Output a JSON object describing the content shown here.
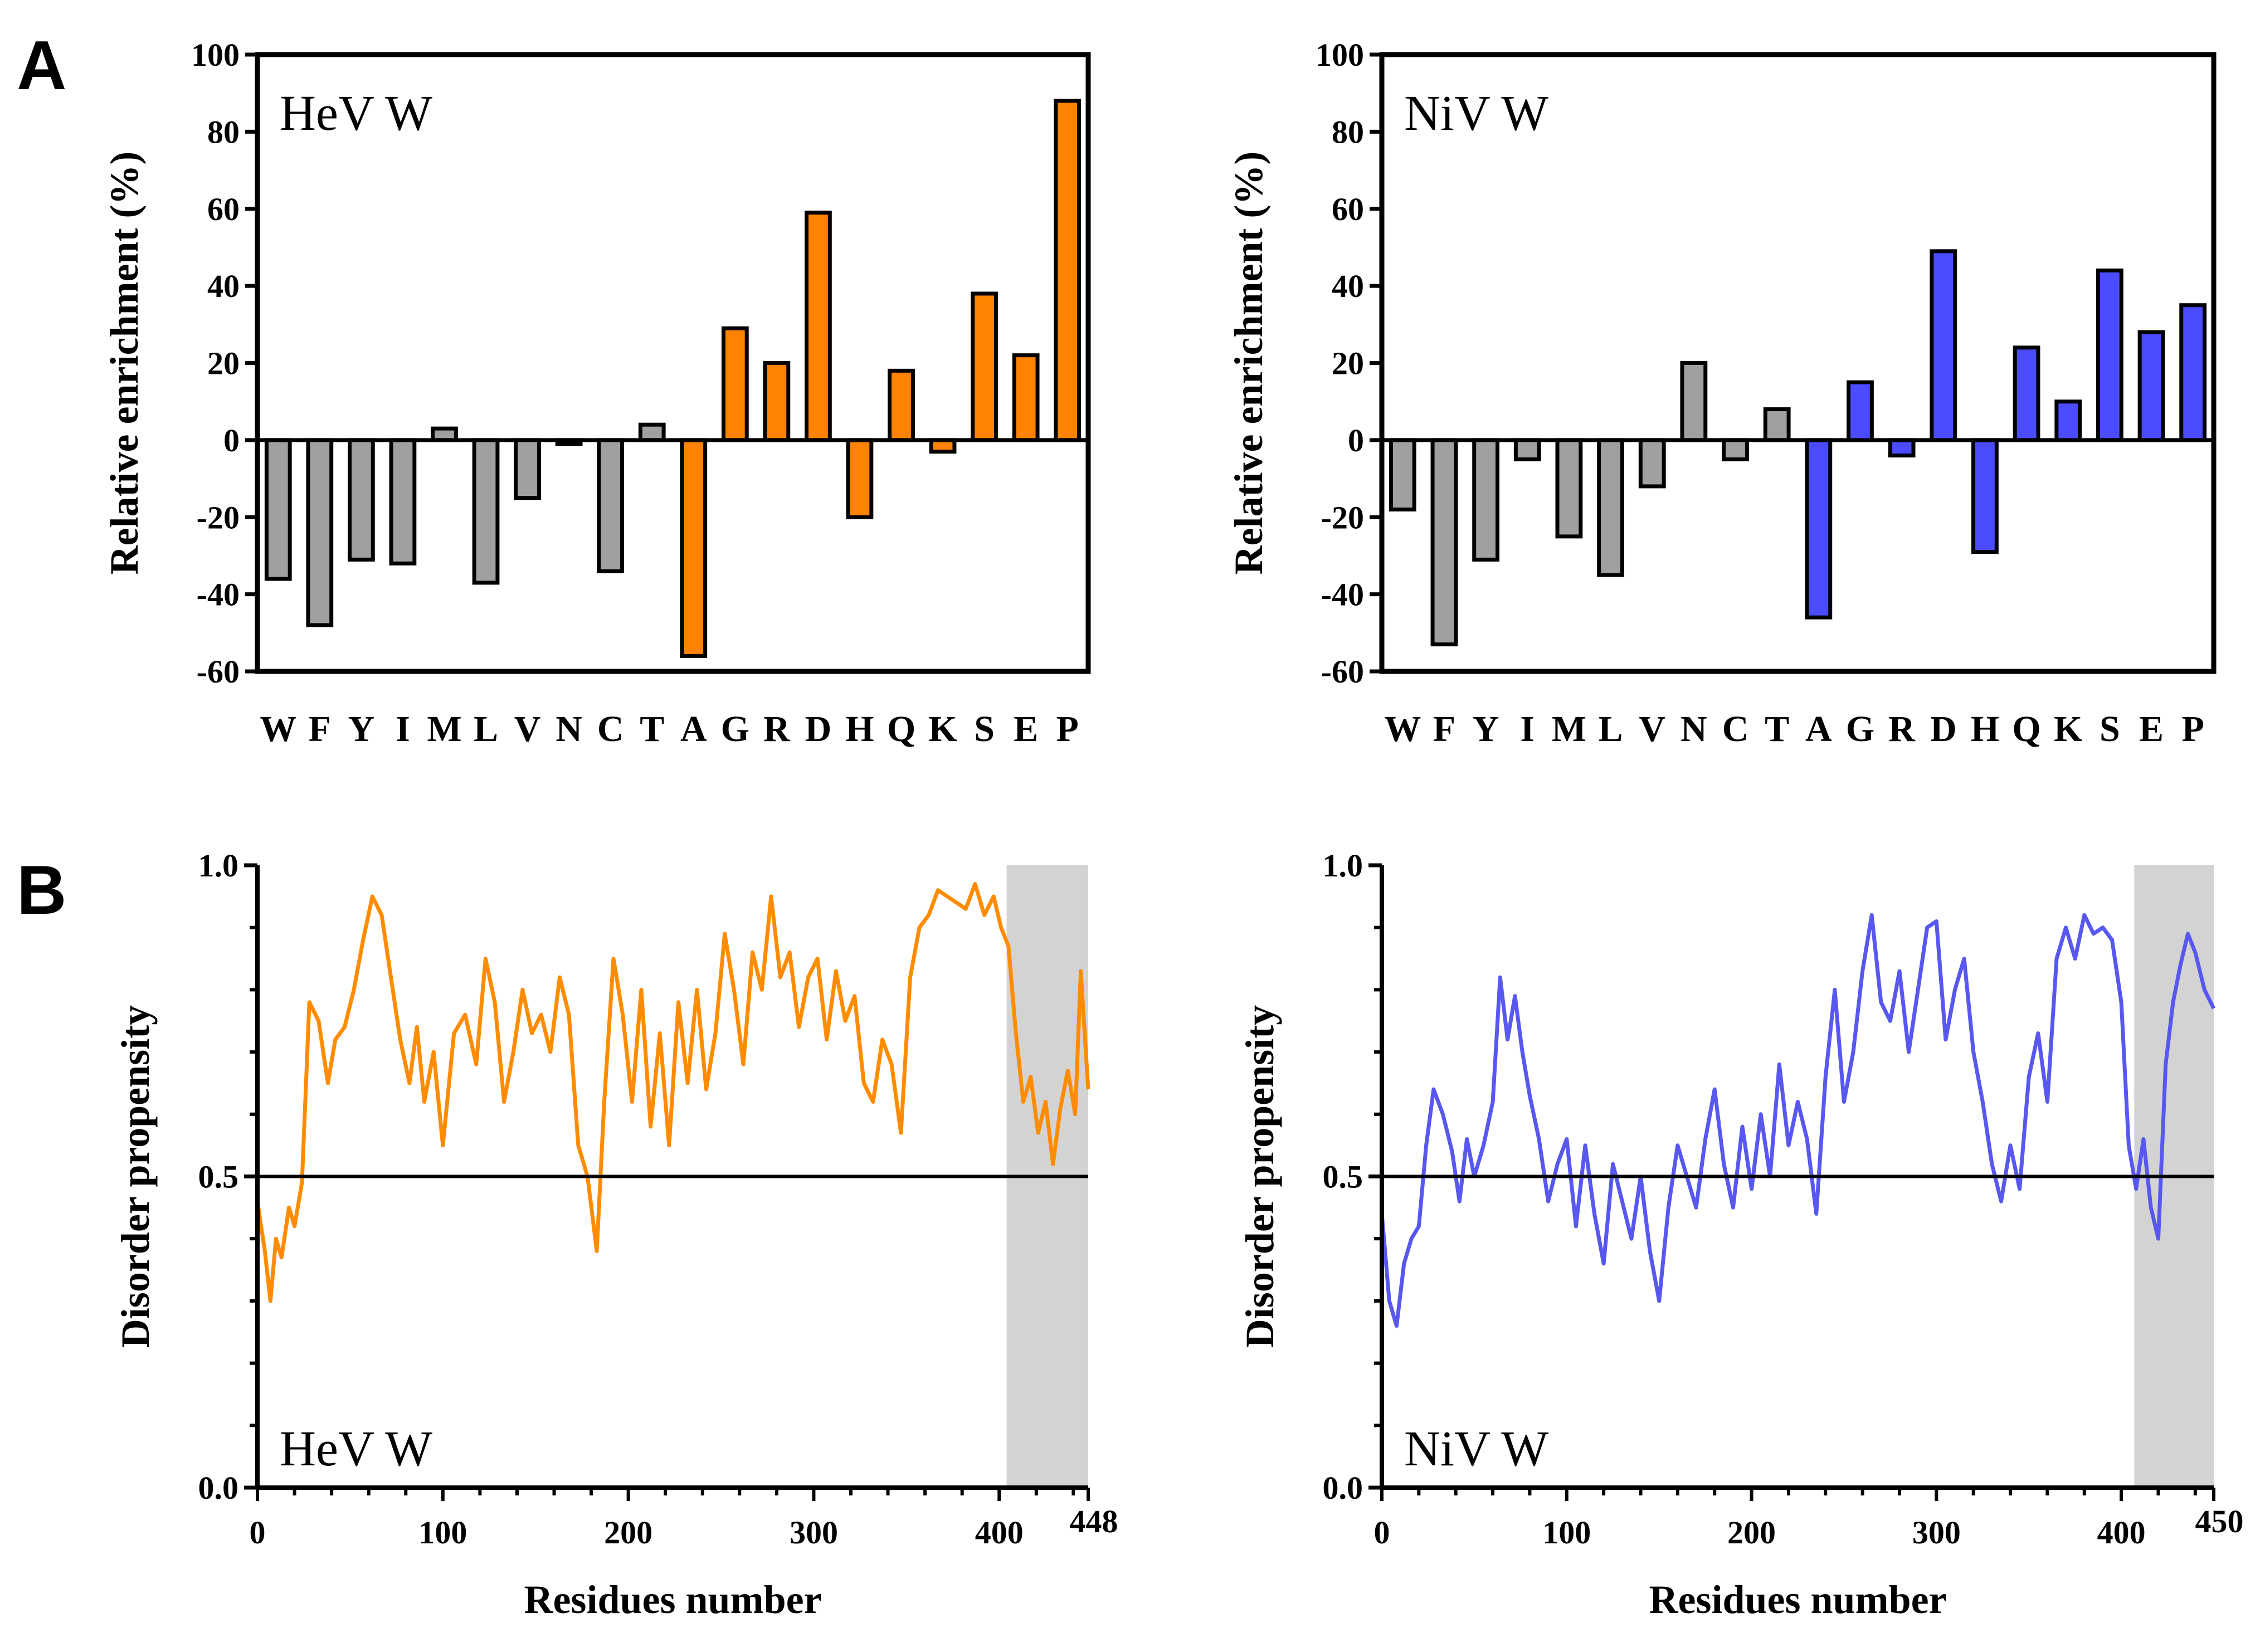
{
  "panels": {
    "a": "A",
    "b": "B"
  },
  "chart_data": [
    {
      "id": "hev_bar",
      "type": "bar",
      "label": "HeV W",
      "ylabel": "Relative enrichment (%)",
      "xlabel": "",
      "ylim": [
        -60,
        100
      ],
      "yticks": [
        -60,
        -40,
        -20,
        0,
        20,
        40,
        60,
        80,
        100
      ],
      "categories": [
        "W",
        "F",
        "Y",
        "I",
        "M",
        "L",
        "V",
        "N",
        "C",
        "T",
        "A",
        "G",
        "R",
        "D",
        "H",
        "Q",
        "K",
        "S",
        "E",
        "P"
      ],
      "values": [
        -36,
        -48,
        -31,
        -32,
        3,
        -37,
        -15,
        -1,
        -34,
        4,
        -56,
        29,
        20,
        59,
        -20,
        18,
        -3,
        38,
        22,
        88
      ],
      "disorder_promoting": [
        false,
        false,
        false,
        false,
        false,
        false,
        false,
        false,
        false,
        false,
        true,
        true,
        true,
        true,
        true,
        true,
        true,
        true,
        true,
        true
      ],
      "colors": {
        "order": "#a0a0a0",
        "disorder": "#ff8200"
      }
    },
    {
      "id": "niv_bar",
      "type": "bar",
      "label": "NiV W",
      "ylabel": "Relative enrichment (%)",
      "xlabel": "",
      "ylim": [
        -60,
        100
      ],
      "yticks": [
        -60,
        -40,
        -20,
        0,
        20,
        40,
        60,
        80,
        100
      ],
      "categories": [
        "W",
        "F",
        "Y",
        "I",
        "M",
        "L",
        "V",
        "N",
        "C",
        "T",
        "A",
        "G",
        "R",
        "D",
        "H",
        "Q",
        "K",
        "S",
        "E",
        "P"
      ],
      "values": [
        -18,
        -53,
        -31,
        -5,
        -25,
        -35,
        -12,
        20,
        -5,
        8,
        -46,
        15,
        -4,
        49,
        -29,
        24,
        10,
        44,
        28,
        35
      ],
      "disorder_promoting": [
        false,
        false,
        false,
        false,
        false,
        false,
        false,
        false,
        false,
        false,
        true,
        true,
        true,
        true,
        true,
        true,
        true,
        true,
        true,
        true
      ],
      "colors": {
        "order": "#a0a0a0",
        "disorder": "#4b4bff"
      }
    },
    {
      "id": "hev_line",
      "type": "line",
      "label": "HeV W",
      "ylabel": "Disorder propensity",
      "xlabel": "Residues number",
      "xlim": [
        0,
        448
      ],
      "ylim": [
        0,
        1
      ],
      "xticks": [
        "0",
        "100",
        "200",
        "300",
        "400",
        "448"
      ],
      "xtick_values": [
        0,
        100,
        200,
        300,
        400,
        448
      ],
      "yticks": [
        "0.0",
        "0.5",
        "1.0"
      ],
      "ytick_values": [
        0,
        0.5,
        1.0
      ],
      "threshold": 0.5,
      "shaded_region": [
        404,
        448
      ],
      "color": "#ff8c00",
      "x": [
        0,
        4,
        7,
        10,
        13,
        17,
        20,
        24,
        28,
        33,
        38,
        42,
        47,
        52,
        57,
        62,
        67,
        72,
        77,
        82,
        86,
        90,
        95,
        100,
        106,
        112,
        118,
        123,
        128,
        133,
        138,
        143,
        148,
        153,
        158,
        163,
        168,
        173,
        178,
        183,
        187,
        192,
        197,
        202,
        207,
        212,
        217,
        222,
        227,
        232,
        237,
        242,
        247,
        252,
        257,
        262,
        267,
        272,
        277,
        282,
        287,
        292,
        297,
        302,
        307,
        312,
        317,
        322,
        327,
        332,
        337,
        342,
        347,
        352,
        357,
        362,
        367,
        372,
        377,
        382,
        387,
        392,
        397,
        401,
        405,
        409,
        413,
        417,
        421,
        425,
        429,
        433,
        437,
        441,
        444,
        448
      ],
      "y": [
        0.46,
        0.38,
        0.3,
        0.4,
        0.37,
        0.45,
        0.42,
        0.49,
        0.78,
        0.75,
        0.65,
        0.72,
        0.74,
        0.8,
        0.88,
        0.95,
        0.92,
        0.82,
        0.72,
        0.65,
        0.74,
        0.62,
        0.7,
        0.55,
        0.73,
        0.76,
        0.68,
        0.85,
        0.78,
        0.62,
        0.7,
        0.8,
        0.73,
        0.76,
        0.7,
        0.82,
        0.76,
        0.55,
        0.5,
        0.38,
        0.62,
        0.85,
        0.76,
        0.62,
        0.8,
        0.58,
        0.73,
        0.55,
        0.78,
        0.65,
        0.8,
        0.64,
        0.73,
        0.89,
        0.8,
        0.68,
        0.86,
        0.8,
        0.95,
        0.82,
        0.86,
        0.74,
        0.82,
        0.85,
        0.72,
        0.83,
        0.75,
        0.79,
        0.65,
        0.62,
        0.72,
        0.68,
        0.57,
        0.82,
        0.9,
        0.92,
        0.96,
        0.95,
        0.94,
        0.93,
        0.97,
        0.92,
        0.95,
        0.9,
        0.87,
        0.73,
        0.62,
        0.66,
        0.57,
        0.62,
        0.52,
        0.61,
        0.67,
        0.6,
        0.83,
        0.64
      ]
    },
    {
      "id": "niv_line",
      "type": "line",
      "label": "NiV W",
      "ylabel": "Disorder propensity",
      "xlabel": "Residues number",
      "xlim": [
        0,
        450
      ],
      "ylim": [
        0,
        1
      ],
      "xticks": [
        "0",
        "100",
        "200",
        "300",
        "400",
        "450"
      ],
      "xtick_values": [
        0,
        100,
        200,
        300,
        400,
        450
      ],
      "yticks": [
        "0.0",
        "0.5",
        "1.0"
      ],
      "ytick_values": [
        0,
        0.5,
        1.0
      ],
      "threshold": 0.5,
      "shaded_region": [
        407,
        450
      ],
      "color": "#5858f0",
      "x": [
        0,
        4,
        8,
        12,
        16,
        20,
        24,
        28,
        33,
        38,
        42,
        46,
        50,
        55,
        60,
        64,
        68,
        72,
        76,
        80,
        85,
        90,
        95,
        100,
        105,
        110,
        115,
        120,
        125,
        130,
        135,
        140,
        145,
        150,
        155,
        160,
        165,
        170,
        175,
        180,
        185,
        190,
        195,
        200,
        205,
        210,
        215,
        220,
        225,
        230,
        235,
        240,
        245,
        250,
        255,
        260,
        265,
        270,
        275,
        280,
        285,
        290,
        295,
        300,
        305,
        310,
        315,
        320,
        325,
        330,
        335,
        340,
        345,
        350,
        355,
        360,
        365,
        370,
        375,
        380,
        385,
        390,
        395,
        400,
        404,
        408,
        412,
        416,
        420,
        424,
        428,
        432,
        436,
        440,
        445,
        450
      ],
      "y": [
        0.44,
        0.3,
        0.26,
        0.36,
        0.4,
        0.42,
        0.55,
        0.64,
        0.6,
        0.54,
        0.46,
        0.56,
        0.5,
        0.55,
        0.62,
        0.82,
        0.72,
        0.79,
        0.7,
        0.63,
        0.56,
        0.46,
        0.52,
        0.56,
        0.42,
        0.55,
        0.44,
        0.36,
        0.52,
        0.46,
        0.4,
        0.5,
        0.38,
        0.3,
        0.45,
        0.55,
        0.5,
        0.45,
        0.56,
        0.64,
        0.52,
        0.45,
        0.58,
        0.48,
        0.6,
        0.5,
        0.68,
        0.55,
        0.62,
        0.56,
        0.44,
        0.66,
        0.8,
        0.62,
        0.7,
        0.83,
        0.92,
        0.78,
        0.75,
        0.83,
        0.7,
        0.8,
        0.9,
        0.91,
        0.72,
        0.8,
        0.85,
        0.7,
        0.62,
        0.52,
        0.46,
        0.55,
        0.48,
        0.66,
        0.73,
        0.62,
        0.85,
        0.9,
        0.85,
        0.92,
        0.89,
        0.9,
        0.88,
        0.78,
        0.55,
        0.48,
        0.56,
        0.45,
        0.4,
        0.68,
        0.78,
        0.84,
        0.89,
        0.86,
        0.8,
        0.77
      ]
    }
  ]
}
